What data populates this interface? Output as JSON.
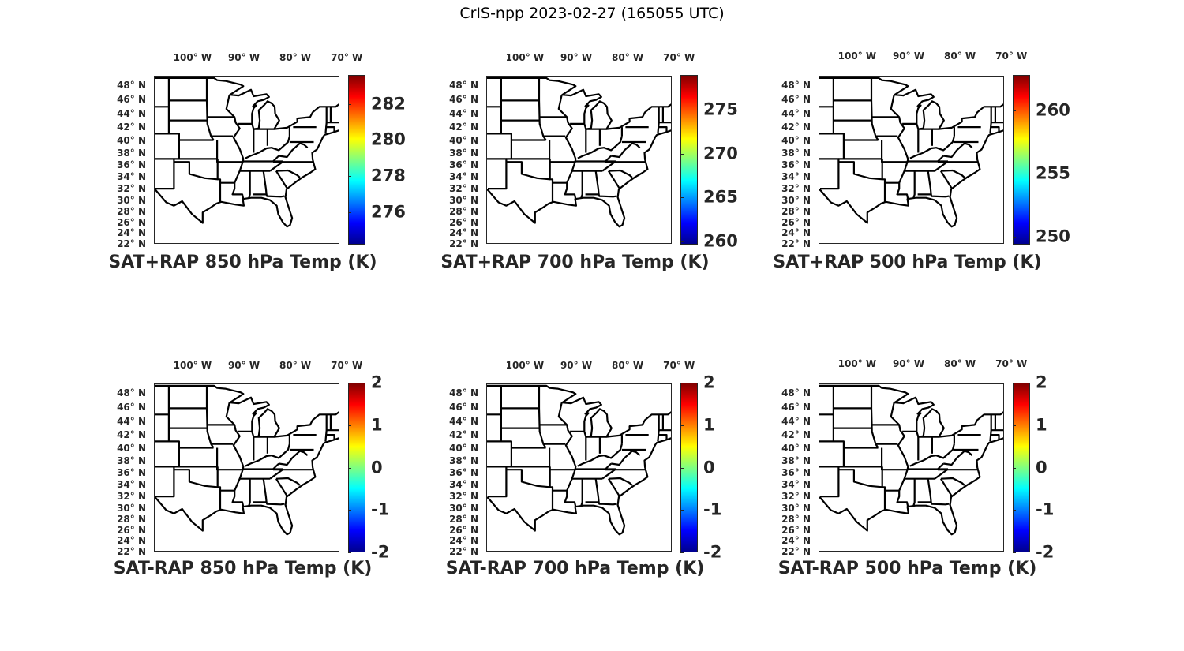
{
  "figure_title": "CrIS-npp 2023-02-27 (165055 UTC)",
  "lon_labels": [
    {
      "lon": -100,
      "text": "100° W"
    },
    {
      "lon": -90,
      "text": "90° W"
    },
    {
      "lon": -80,
      "text": "80° W"
    },
    {
      "lon": -70,
      "text": "70° W"
    }
  ],
  "lat_labels": [
    {
      "lat": 48,
      "text": "48° N"
    },
    {
      "lat": 46,
      "text": "46° N"
    },
    {
      "lat": 44,
      "text": "44° N"
    },
    {
      "lat": 42,
      "text": "42° N"
    },
    {
      "lat": 40,
      "text": "40° N"
    },
    {
      "lat": 38,
      "text": "38° N"
    },
    {
      "lat": 36,
      "text": "36° N"
    },
    {
      "lat": 34,
      "text": "34° N"
    },
    {
      "lat": 32,
      "text": "32° N"
    },
    {
      "lat": 30,
      "text": "30° N"
    },
    {
      "lat": 28,
      "text": "28° N"
    },
    {
      "lat": 26,
      "text": "26° N"
    },
    {
      "lat": 24,
      "text": "24° N"
    },
    {
      "lat": 22,
      "text": "22° N"
    }
  ],
  "map_extent": {
    "lon": [
      -106.9,
      -70.8
    ],
    "lat": [
      22,
      49.3
    ]
  },
  "colormap": [
    "#00008f",
    "#0000ff",
    "#00ffff",
    "#ffff00",
    "#ff0000",
    "#800000"
  ],
  "panels": [
    {
      "title": "SAT+RAP 850 hPa Temp (K)",
      "cbar_range": [
        274.2,
        283.6
      ],
      "cbar_ticks": [
        "276",
        "278",
        "280",
        "282"
      ]
    },
    {
      "title": "SAT+RAP 700 hPa Temp (K)",
      "cbar_range": [
        259.6,
        279.0
      ],
      "cbar_ticks": [
        "260",
        "265",
        "270",
        "275"
      ]
    },
    {
      "title": "SAT+RAP 500 hPa Temp (K)",
      "cbar_range": [
        249.4,
        262.8
      ],
      "cbar_ticks": [
        "250",
        "255",
        "260"
      ]
    },
    {
      "title": "SAT-RAP 850 hPa Temp (K)",
      "cbar_range": [
        -2,
        2
      ],
      "cbar_ticks": [
        "-2",
        "-1",
        "0",
        "1",
        "2"
      ]
    },
    {
      "title": "SAT-RAP 700 hPa Temp (K)",
      "cbar_range": [
        -2,
        2
      ],
      "cbar_ticks": [
        "-2",
        "-1",
        "0",
        "1",
        "2"
      ]
    },
    {
      "title": "SAT-RAP 500 hPa Temp (K)",
      "cbar_range": [
        -2,
        2
      ],
      "cbar_ticks": [
        "-2",
        "-1",
        "0",
        "1",
        "2"
      ]
    }
  ]
}
